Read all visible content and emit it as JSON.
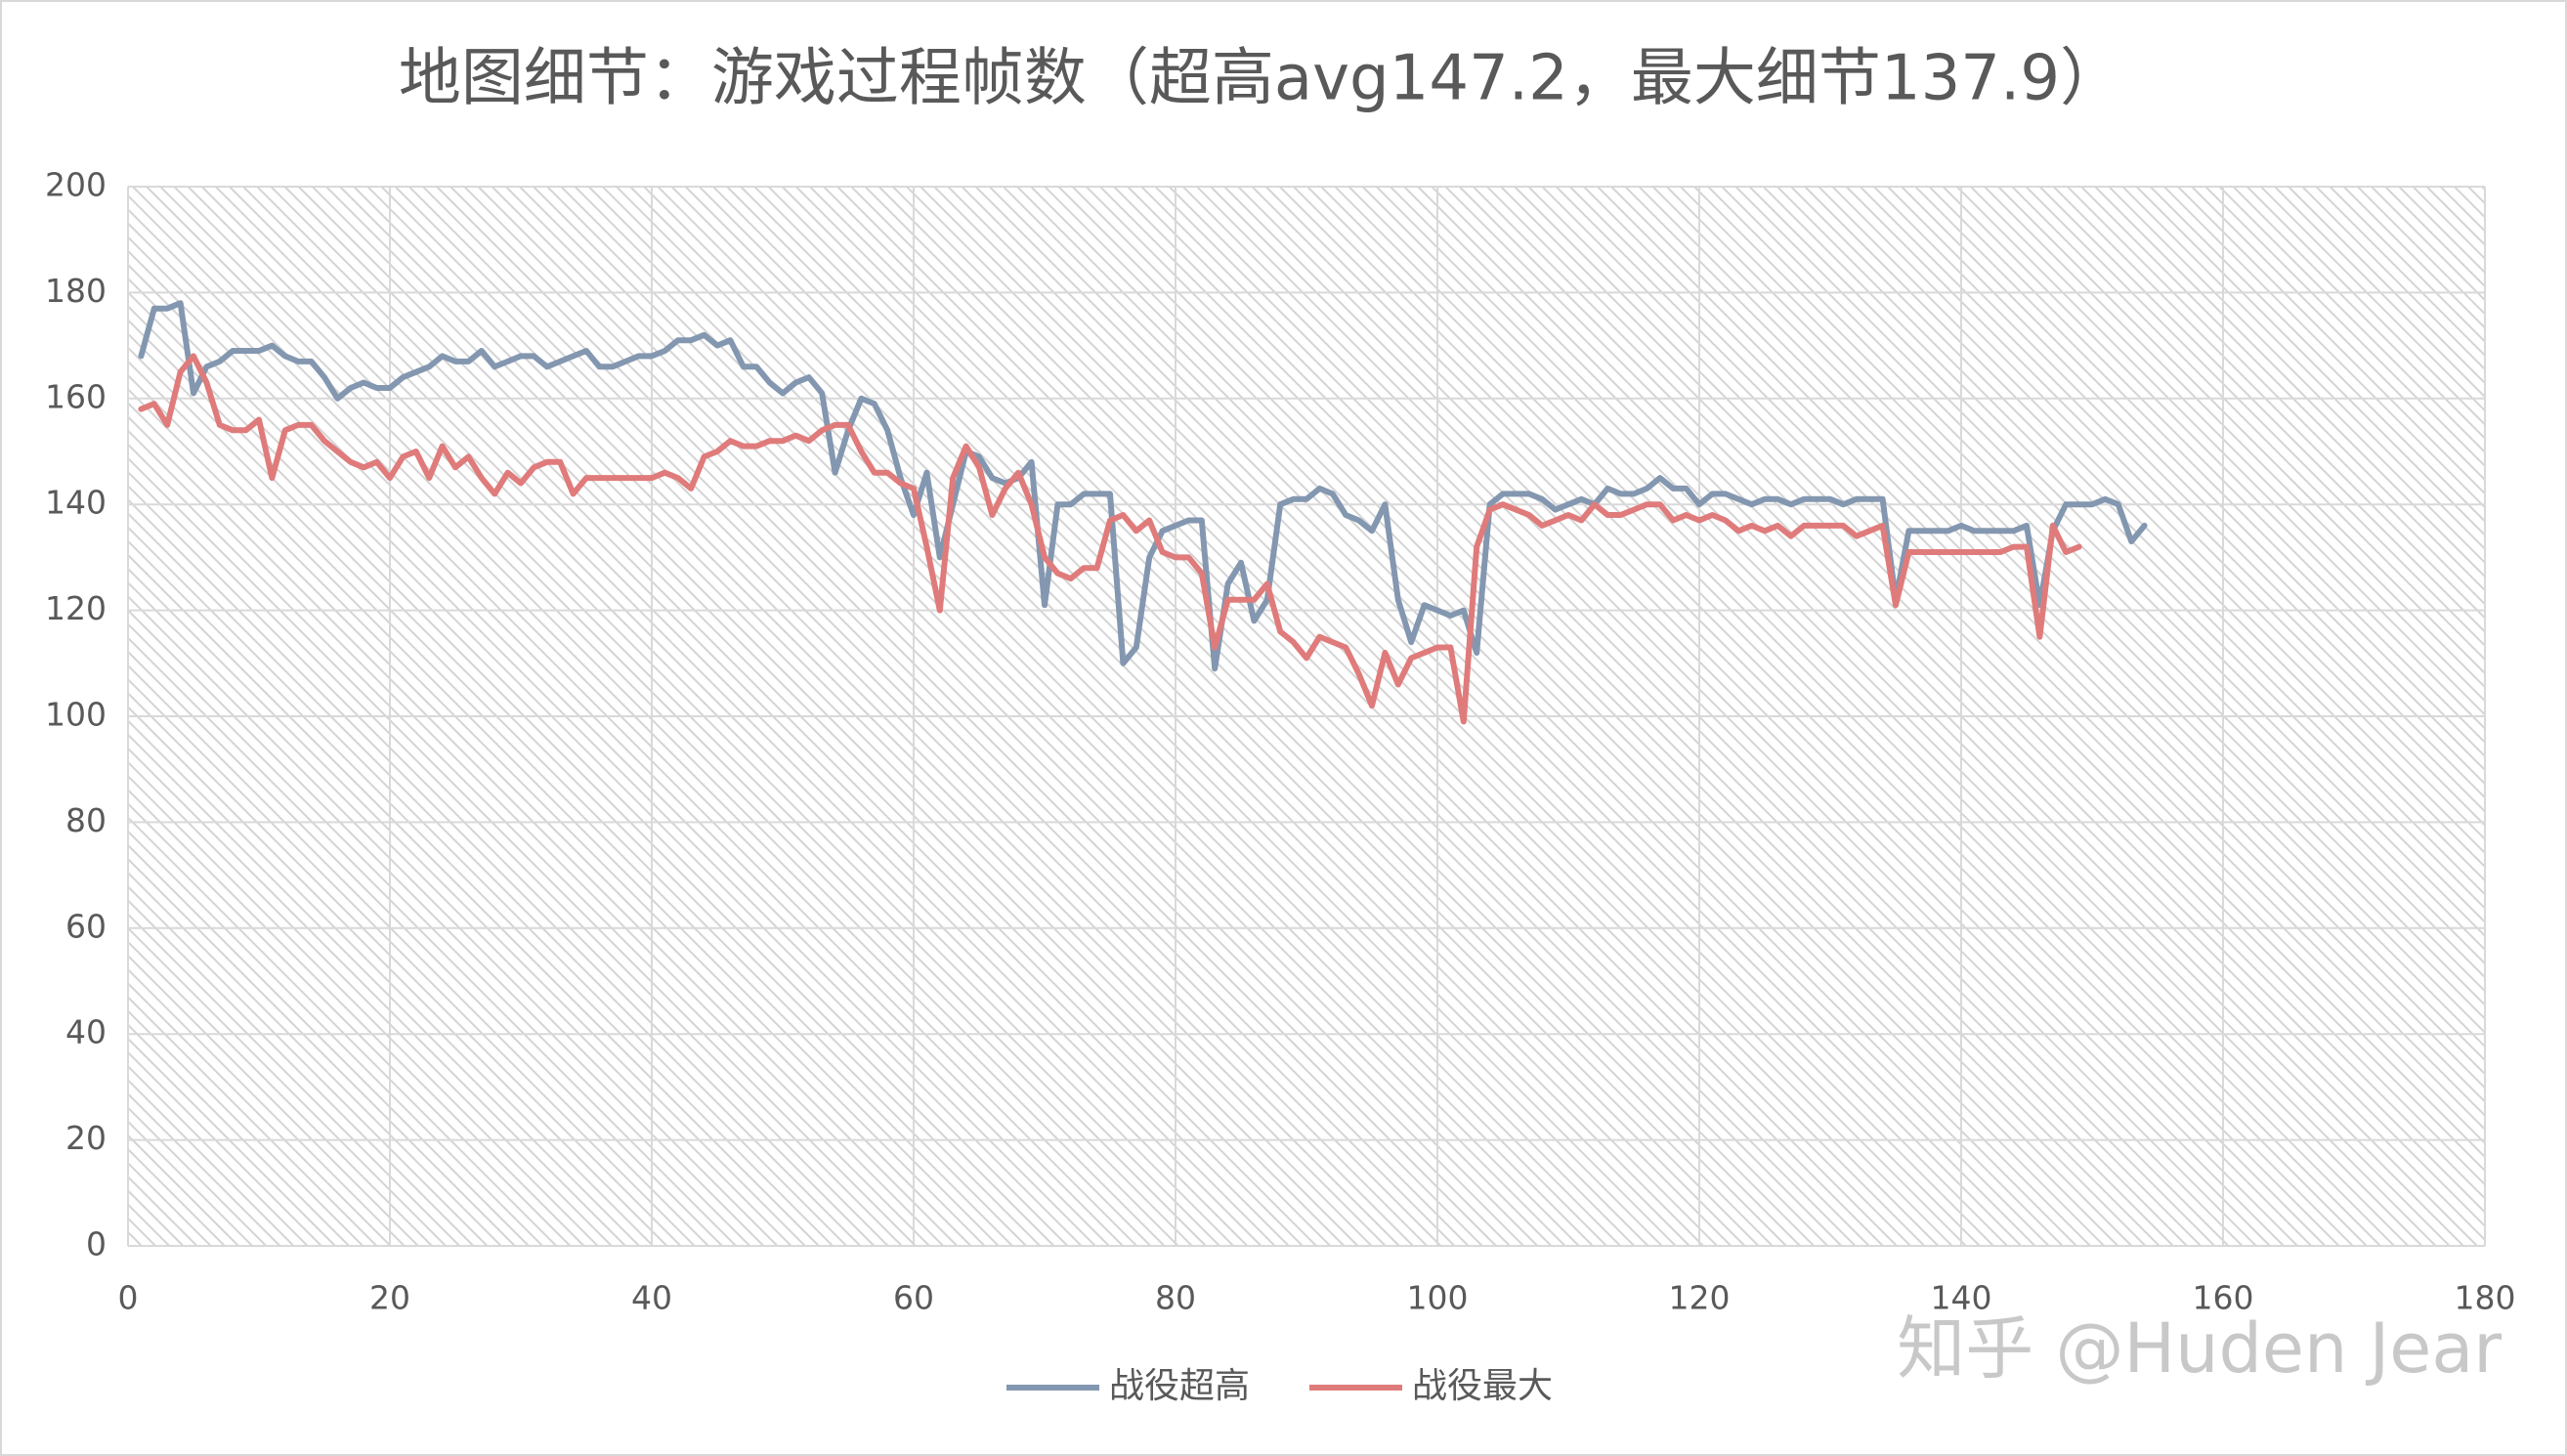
{
  "chart_data": {
    "type": "line",
    "title": "地图细节：游戏过程帧数（超高avg147.2，最大细节137.9）",
    "watermark": "知乎 @Huden Jear",
    "x": [
      1,
      2,
      3,
      4,
      5,
      6,
      7,
      8,
      9,
      10,
      11,
      12,
      13,
      14,
      15,
      16,
      17,
      18,
      19,
      20,
      21,
      22,
      23,
      24,
      25,
      26,
      27,
      28,
      29,
      30,
      31,
      32,
      33,
      34,
      35,
      36,
      37,
      38,
      39,
      40,
      41,
      42,
      43,
      44,
      45,
      46,
      47,
      48,
      49,
      50,
      51,
      52,
      53,
      54,
      55,
      56,
      57,
      58,
      59,
      60,
      61,
      62,
      63,
      64,
      65,
      66,
      67,
      68,
      69,
      70,
      71,
      72,
      73,
      74,
      75,
      76,
      77,
      78,
      79,
      80,
      81,
      82,
      83,
      84,
      85,
      86,
      87,
      88,
      89,
      90,
      91,
      92,
      93,
      94,
      95,
      96,
      97,
      98,
      99,
      100,
      101,
      102,
      103,
      104,
      105,
      106,
      107,
      108,
      109,
      110,
      111,
      112,
      113,
      114,
      115,
      116,
      117,
      118,
      119,
      120,
      121,
      122,
      123,
      124,
      125,
      126,
      127,
      128,
      129,
      130,
      131,
      132,
      133,
      134,
      135,
      136,
      137,
      138,
      139,
      140,
      141,
      142,
      143,
      144,
      145,
      146,
      147,
      148,
      149,
      150,
      151,
      152,
      153,
      154
    ],
    "series": [
      {
        "name": "战役超高",
        "color": "#8497b0",
        "values": [
          168,
          177,
          177,
          178,
          161,
          166,
          167,
          169,
          169,
          169,
          170,
          168,
          167,
          167,
          164,
          160,
          162,
          163,
          162,
          162,
          164,
          165,
          166,
          168,
          167,
          167,
          169,
          166,
          167,
          168,
          168,
          166,
          167,
          168,
          169,
          166,
          166,
          167,
          168,
          168,
          169,
          171,
          171,
          172,
          170,
          171,
          166,
          166,
          163,
          161,
          163,
          164,
          161,
          146,
          154,
          160,
          159,
          154,
          145,
          138,
          146,
          130,
          140,
          150,
          149,
          145,
          144,
          145,
          148,
          121,
          140,
          140,
          142,
          142,
          142,
          110,
          113,
          130,
          135,
          136,
          137,
          137,
          109,
          125,
          129,
          118,
          122,
          140,
          141,
          141,
          143,
          142,
          138,
          137,
          135,
          140,
          122,
          114,
          121,
          120,
          119,
          120,
          112,
          140,
          142,
          142,
          142,
          141,
          139,
          140,
          141,
          140,
          143,
          142,
          142,
          143,
          145,
          143,
          143,
          140,
          142,
          142,
          141,
          140,
          141,
          141,
          140,
          141,
          141,
          141,
          140,
          141,
          141,
          141,
          122,
          135,
          135,
          135,
          135,
          136,
          135,
          135,
          135,
          135,
          136,
          121,
          135,
          140,
          140,
          140,
          141,
          140,
          133,
          136
        ]
      },
      {
        "name": "战役最大",
        "color": "#e07b7b",
        "values": [
          158,
          159,
          155,
          165,
          168,
          163,
          155,
          154,
          154,
          156,
          145,
          154,
          155,
          155,
          152,
          150,
          148,
          147,
          148,
          145,
          149,
          150,
          145,
          151,
          147,
          149,
          145,
          142,
          146,
          144,
          147,
          148,
          148,
          142,
          145,
          145,
          145,
          145,
          145,
          145,
          146,
          145,
          143,
          149,
          150,
          152,
          151,
          151,
          152,
          152,
          153,
          152,
          154,
          155,
          155,
          150,
          146,
          146,
          144,
          143,
          132,
          120,
          145,
          151,
          147,
          138,
          143,
          146,
          140,
          130,
          127,
          126,
          128,
          128,
          137,
          138,
          135,
          137,
          131,
          130,
          130,
          127,
          113,
          122,
          122,
          122,
          125,
          116,
          114,
          111,
          115,
          114,
          113,
          108,
          102,
          112,
          106,
          111,
          112,
          113,
          113,
          99,
          132,
          139,
          140,
          139,
          138,
          136,
          137,
          138,
          137,
          140,
          138,
          138,
          139,
          140,
          140,
          137,
          138,
          137,
          138,
          137,
          135,
          136,
          135,
          136,
          134,
          136,
          136,
          136,
          136,
          134,
          135,
          136,
          121,
          131,
          131,
          131,
          131,
          131,
          131,
          131,
          131,
          132,
          132,
          115,
          136,
          131,
          132,
          null,
          null,
          null,
          null,
          null
        ]
      }
    ],
    "xlim": [
      0,
      180
    ],
    "xticks": [
      0,
      20,
      40,
      60,
      80,
      100,
      120,
      140,
      160,
      180
    ],
    "ylim": [
      0,
      200
    ],
    "yticks": [
      0,
      20,
      40,
      60,
      80,
      100,
      120,
      140,
      160,
      180,
      200
    ],
    "grid": true,
    "legend": "bottom"
  }
}
